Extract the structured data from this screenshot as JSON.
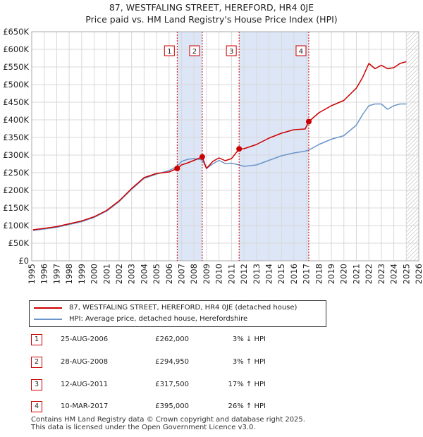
{
  "title_line1": "87, WESTFALING STREET, HEREFORD, HR4 0JE",
  "title_line2": "Price paid vs. HM Land Registry's House Price Index (HPI)",
  "colors": {
    "price_paid": "#cc0000",
    "hpi": "#6b95c9",
    "shade": "#dde6f6",
    "marker_line": "#cc0000",
    "grid": "#d8d8d8"
  },
  "chart_data": {
    "type": "line",
    "title": "Price paid vs. HM Land Registry's House Price Index (HPI)",
    "xlabel": "",
    "ylabel": "",
    "xlim": [
      1995,
      2026
    ],
    "ylim": [
      0,
      650000
    ],
    "y_ticks": [
      0,
      50000,
      100000,
      150000,
      200000,
      250000,
      300000,
      350000,
      400000,
      450000,
      500000,
      550000,
      600000,
      650000
    ],
    "y_tick_labels": [
      "£0",
      "£50K",
      "£100K",
      "£150K",
      "£200K",
      "£250K",
      "£300K",
      "£350K",
      "£400K",
      "£450K",
      "£500K",
      "£550K",
      "£600K",
      "£650K"
    ],
    "x_ticks": [
      1995,
      1996,
      1997,
      1998,
      1999,
      2000,
      2001,
      2002,
      2003,
      2004,
      2005,
      2006,
      2007,
      2008,
      2009,
      2010,
      2011,
      2012,
      2013,
      2014,
      2015,
      2016,
      2017,
      2018,
      2019,
      2020,
      2021,
      2022,
      2023,
      2024,
      2025,
      2026
    ],
    "x_tick_labels": [
      "1995",
      "1996",
      "1997",
      "1998",
      "1999",
      "2000",
      "2001",
      "2002",
      "2003",
      "2004",
      "2005",
      "2006",
      "2007",
      "2008",
      "2009",
      "2010",
      "2011",
      "2012",
      "2013",
      "2014",
      "2015",
      "2016",
      "2017",
      "2018",
      "2019",
      "2020",
      "2021",
      "2022",
      "2023",
      "2024",
      "2025",
      "2026"
    ],
    "shaded_ranges": [
      [
        2006.65,
        2008.66
      ],
      [
        2011.61,
        2017.19
      ]
    ],
    "future_hatch_from": 2025.0,
    "series": [
      {
        "name": "87, WESTFALING STREET, HEREFORD, HR4 0JE (detached house)",
        "color": "#cc0000",
        "x": [
          1995.1,
          1996,
          1997,
          1998,
          1999,
          2000,
          2001,
          2002,
          2003,
          2004,
          2005,
          2006,
          2006.65,
          2007,
          2007.5,
          2008,
          2008.66,
          2009,
          2009.5,
          2010,
          2010.5,
          2011,
          2011.61,
          2012,
          2013,
          2014,
          2015,
          2016,
          2016.9,
          2017.19,
          2018,
          2019,
          2020,
          2021,
          2021.5,
          2022,
          2022.5,
          2023,
          2023.5,
          2024,
          2024.5,
          2025
        ],
        "y": [
          88000,
          92000,
          97000,
          105000,
          113000,
          125000,
          143000,
          170000,
          205000,
          236000,
          248000,
          252000,
          262000,
          272000,
          278000,
          285000,
          294950,
          262000,
          282000,
          292000,
          284000,
          290000,
          317500,
          318000,
          330000,
          348000,
          362000,
          372000,
          374000,
          395000,
          420000,
          440000,
          455000,
          490000,
          520000,
          560000,
          545000,
          555000,
          545000,
          548000,
          560000,
          565000
        ]
      },
      {
        "name": "HPI: Average price, detached house, Herefordshire",
        "color": "#6b95c9",
        "x": [
          1995.1,
          1996,
          1997,
          1998,
          1999,
          2000,
          2001,
          2002,
          2003,
          2004,
          2005,
          2006,
          2006.65,
          2007,
          2007.5,
          2008,
          2008.66,
          2009,
          2009.5,
          2010,
          2010.5,
          2011,
          2011.61,
          2012,
          2013,
          2014,
          2015,
          2016,
          2016.9,
          2017.19,
          2018,
          2019,
          2020,
          2021,
          2021.5,
          2022,
          2022.5,
          2023,
          2023.5,
          2024,
          2024.5,
          2025
        ],
        "y": [
          86000,
          90000,
          95000,
          103000,
          111000,
          123000,
          141000,
          168000,
          203000,
          234000,
          246000,
          256000,
          268000,
          282000,
          288000,
          290000,
          286000,
          262000,
          275000,
          285000,
          276000,
          277000,
          272000,
          268000,
          272000,
          285000,
          298000,
          306000,
          311000,
          314000,
          330000,
          345000,
          355000,
          385000,
          415000,
          440000,
          445000,
          445000,
          430000,
          440000,
          445000,
          445000
        ]
      }
    ],
    "transactions": [
      {
        "id": "1",
        "x": 2006.65,
        "price": 262000
      },
      {
        "id": "2",
        "x": 2008.66,
        "price": 294950
      },
      {
        "id": "3",
        "x": 2011.61,
        "price": 317500
      },
      {
        "id": "4",
        "x": 2017.19,
        "price": 395000
      }
    ]
  },
  "legend": {
    "price_label": "87, WESTFALING STREET, HEREFORD, HR4 0JE (detached house)",
    "hpi_label": "HPI: Average price, detached house, Herefordshire"
  },
  "transactions": [
    {
      "id": "1",
      "date": "25-AUG-2006",
      "price": "£262,000",
      "hpi": "3% ↓ HPI"
    },
    {
      "id": "2",
      "date": "28-AUG-2008",
      "price": "£294,950",
      "hpi": "3% ↑ HPI"
    },
    {
      "id": "3",
      "date": "12-AUG-2011",
      "price": "£317,500",
      "hpi": "17% ↑ HPI"
    },
    {
      "id": "4",
      "date": "10-MAR-2017",
      "price": "£395,000",
      "hpi": "26% ↑ HPI"
    }
  ],
  "footer": {
    "line1": "Contains HM Land Registry data © Crown copyright and database right 2025.",
    "line2": "This data is licensed under the Open Government Licence v3.0."
  }
}
